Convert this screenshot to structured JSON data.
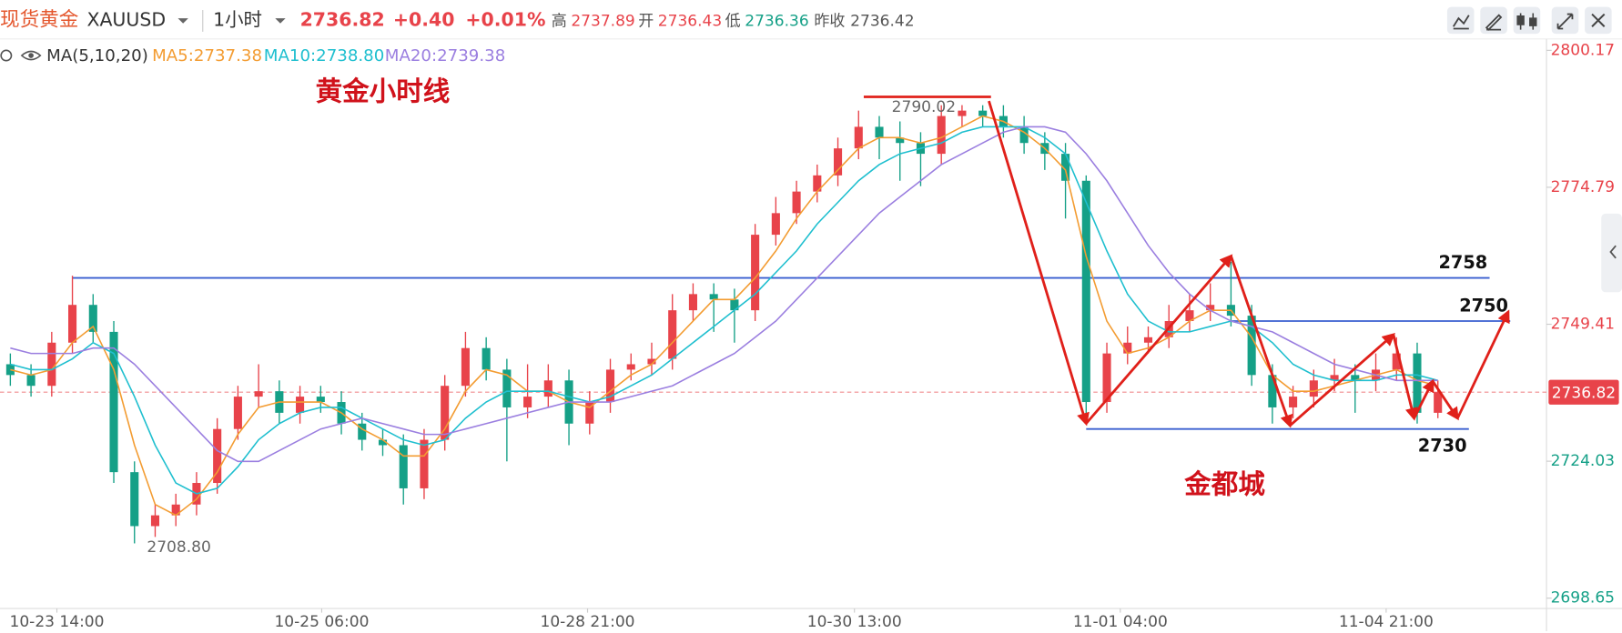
{
  "header": {
    "symbol_name": "现货黄金",
    "symbol": "XAUUSD",
    "interval": "1小时",
    "price": "2736.82",
    "change": "+0.40",
    "change_pct": "+0.01%",
    "high_label": "高",
    "high": "2737.89",
    "open_label": "开",
    "open": "2736.43",
    "low_label": "低",
    "low": "2736.36",
    "prev_close_label": "昨收",
    "prev_close": "2736.42"
  },
  "chart_data": {
    "type": "candlestick",
    "title": "黄金小时线",
    "annotation": "金都城",
    "indicator": "MA(5,10,20)",
    "up_color": "#e8434a",
    "down_color": "#15a087",
    "open": [
      2742,
      2740,
      2738,
      2746,
      2753,
      2748,
      2722,
      2712,
      2714,
      2716,
      2720,
      2730,
      2736,
      2737,
      2733,
      2736,
      2735,
      2731,
      2728,
      2727,
      2719,
      2728,
      2738,
      2745,
      2741,
      2734,
      2736,
      2739,
      2731,
      2735,
      2741,
      2742,
      2743,
      2752,
      2755,
      2754,
      2752,
      2766,
      2770,
      2774,
      2777,
      2782,
      2786,
      2784,
      2783,
      2781,
      2788,
      2789,
      2788,
      2786,
      2783,
      2781,
      2776,
      2735,
      2744,
      2746,
      2747,
      2750,
      2752,
      2753,
      2751,
      2740,
      2734,
      2736,
      2739,
      2740,
      2739,
      2741,
      2744,
      2733
    ],
    "high": [
      2744,
      2742,
      2748,
      2758.4,
      2755,
      2750,
      2724,
      2716,
      2718,
      2722,
      2732,
      2738,
      2742,
      2739,
      2738,
      2738,
      2737,
      2733,
      2730,
      2729,
      2730,
      2740,
      2748,
      2747,
      2743,
      2742,
      2742,
      2741,
      2737,
      2743,
      2744,
      2746,
      2755,
      2757,
      2757,
      2756,
      2768,
      2773,
      2776,
      2779,
      2784,
      2789,
      2788,
      2787,
      2785,
      2790,
      2790.02,
      2790,
      2790,
      2788,
      2785,
      2783,
      2777,
      2746,
      2749,
      2749,
      2753,
      2755,
      2757,
      2761,
      2753,
      2742,
      2738,
      2741,
      2743,
      2742,
      2744,
      2747,
      2746,
      2739
    ],
    "low": [
      2738,
      2736,
      2736,
      2744,
      2746,
      2720,
      2708.8,
      2710,
      2712,
      2714,
      2718,
      2728,
      2734,
      2731,
      2731,
      2733,
      2729,
      2726,
      2725,
      2716,
      2717,
      2726,
      2736,
      2739,
      2724,
      2732,
      2734,
      2727,
      2729,
      2733,
      2739,
      2740,
      2741,
      2750,
      2748,
      2746,
      2750,
      2764,
      2768,
      2772,
      2775,
      2780,
      2780,
      2776,
      2775,
      2779,
      2786,
      2786,
      2784,
      2781,
      2778,
      2769,
      2731,
      2733,
      2742,
      2744,
      2745,
      2748,
      2750,
      2749,
      2738,
      2731,
      2732,
      2734,
      2737,
      2733,
      2737,
      2739,
      2731,
      2732
    ],
    "close": [
      2740,
      2738,
      2746,
      2753,
      2748,
      2722,
      2712,
      2714,
      2716,
      2720,
      2730,
      2736,
      2737,
      2733,
      2736,
      2735,
      2731,
      2728,
      2727,
      2719,
      2728,
      2738,
      2745,
      2741,
      2734,
      2736,
      2739,
      2731,
      2735,
      2741,
      2742,
      2743,
      2752,
      2755,
      2754,
      2752,
      2766,
      2770,
      2774,
      2777,
      2782,
      2786,
      2784,
      2783,
      2781,
      2788,
      2789,
      2788,
      2786,
      2783,
      2781,
      2776,
      2735,
      2744,
      2746,
      2747,
      2750,
      2752,
      2753,
      2751,
      2740,
      2734,
      2736,
      2739,
      2740,
      2739,
      2741,
      2744,
      2733,
      2736.82
    ],
    "series": [
      {
        "name": "MA5:2737.38",
        "color": "#f39c32",
        "values": [
          2741,
          2740,
          2741,
          2746,
          2749,
          2741,
          2727,
          2716,
          2714,
          2717,
          2722,
          2729,
          2734,
          2735,
          2735,
          2735,
          2733,
          2730,
          2728,
          2725,
          2725,
          2730,
          2737,
          2741,
          2740,
          2737,
          2737,
          2735,
          2734,
          2737,
          2740,
          2742,
          2746,
          2750,
          2754,
          2754,
          2758,
          2763,
          2769,
          2774,
          2778,
          2782,
          2784,
          2784,
          2783,
          2784,
          2786,
          2788,
          2787,
          2785,
          2782,
          2778,
          2762,
          2750,
          2744,
          2745,
          2747,
          2750,
          2752,
          2752,
          2747,
          2740,
          2737,
          2737,
          2738,
          2739,
          2740,
          2741,
          2739,
          2738
        ]
      },
      {
        "name": "MA10:2738.80",
        "color": "#1fbfcf",
        "values": [
          2742,
          2741,
          2741,
          2743,
          2746,
          2744,
          2736,
          2727,
          2720,
          2718,
          2719,
          2723,
          2728,
          2731,
          2733,
          2734,
          2734,
          2732,
          2730,
          2728,
          2727,
          2728,
          2732,
          2735,
          2737,
          2737,
          2737,
          2736,
          2735,
          2736,
          2738,
          2740,
          2743,
          2746,
          2749,
          2752,
          2755,
          2759,
          2763,
          2768,
          2772,
          2776,
          2779,
          2781,
          2782,
          2783,
          2785,
          2786,
          2786,
          2786,
          2784,
          2781,
          2772,
          2763,
          2755,
          2750,
          2748,
          2748,
          2749,
          2750,
          2749,
          2746,
          2742,
          2740,
          2739,
          2739,
          2739,
          2740,
          2740,
          2739
        ]
      },
      {
        "name": "MA20:2739.38",
        "color": "#9b7fe0",
        "values": [
          2745,
          2744,
          2744,
          2744,
          2745,
          2745,
          2742,
          2738,
          2734,
          2730,
          2726,
          2724,
          2724,
          2726,
          2728,
          2730,
          2731,
          2732,
          2731,
          2730,
          2729,
          2729,
          2730,
          2731,
          2732,
          2733,
          2734,
          2735,
          2735,
          2735,
          2736,
          2737,
          2738,
          2740,
          2742,
          2744,
          2747,
          2750,
          2754,
          2758,
          2762,
          2766,
          2770,
          2773,
          2776,
          2779,
          2781,
          2783,
          2785,
          2786,
          2786,
          2785,
          2781,
          2776,
          2770,
          2764,
          2759,
          2755,
          2752,
          2750,
          2749,
          2748,
          2746,
          2744,
          2742,
          2741,
          2740,
          2739,
          2739,
          2739
        ]
      }
    ],
    "xlim": [
      -0.5,
      69.5
    ],
    "xticks": [
      {
        "value": 2.25,
        "label": "10-23 14:00"
      },
      {
        "value": 15.05,
        "label": "10-25 06:00"
      },
      {
        "value": 27.9,
        "label": "10-28 21:00"
      },
      {
        "value": 40.8,
        "label": "10-30 13:00"
      },
      {
        "value": 53.65,
        "label": "11-01 04:00"
      },
      {
        "value": 66.5,
        "label": "11-04 21:00"
      }
    ],
    "ylim": [
      2698.65,
      2800.17
    ],
    "yticks": [
      2698.65,
      2724.03,
      2749.41,
      2774.79,
      2800.17
    ],
    "last_price": 2736.82,
    "high_mark": {
      "value": 2790.02,
      "label": "2790.02"
    },
    "low_mark": {
      "value": 2708.8,
      "label": "2708.80"
    },
    "levels": [
      2758,
      2750,
      2730
    ],
    "level_color": "#3a5fd0"
  }
}
